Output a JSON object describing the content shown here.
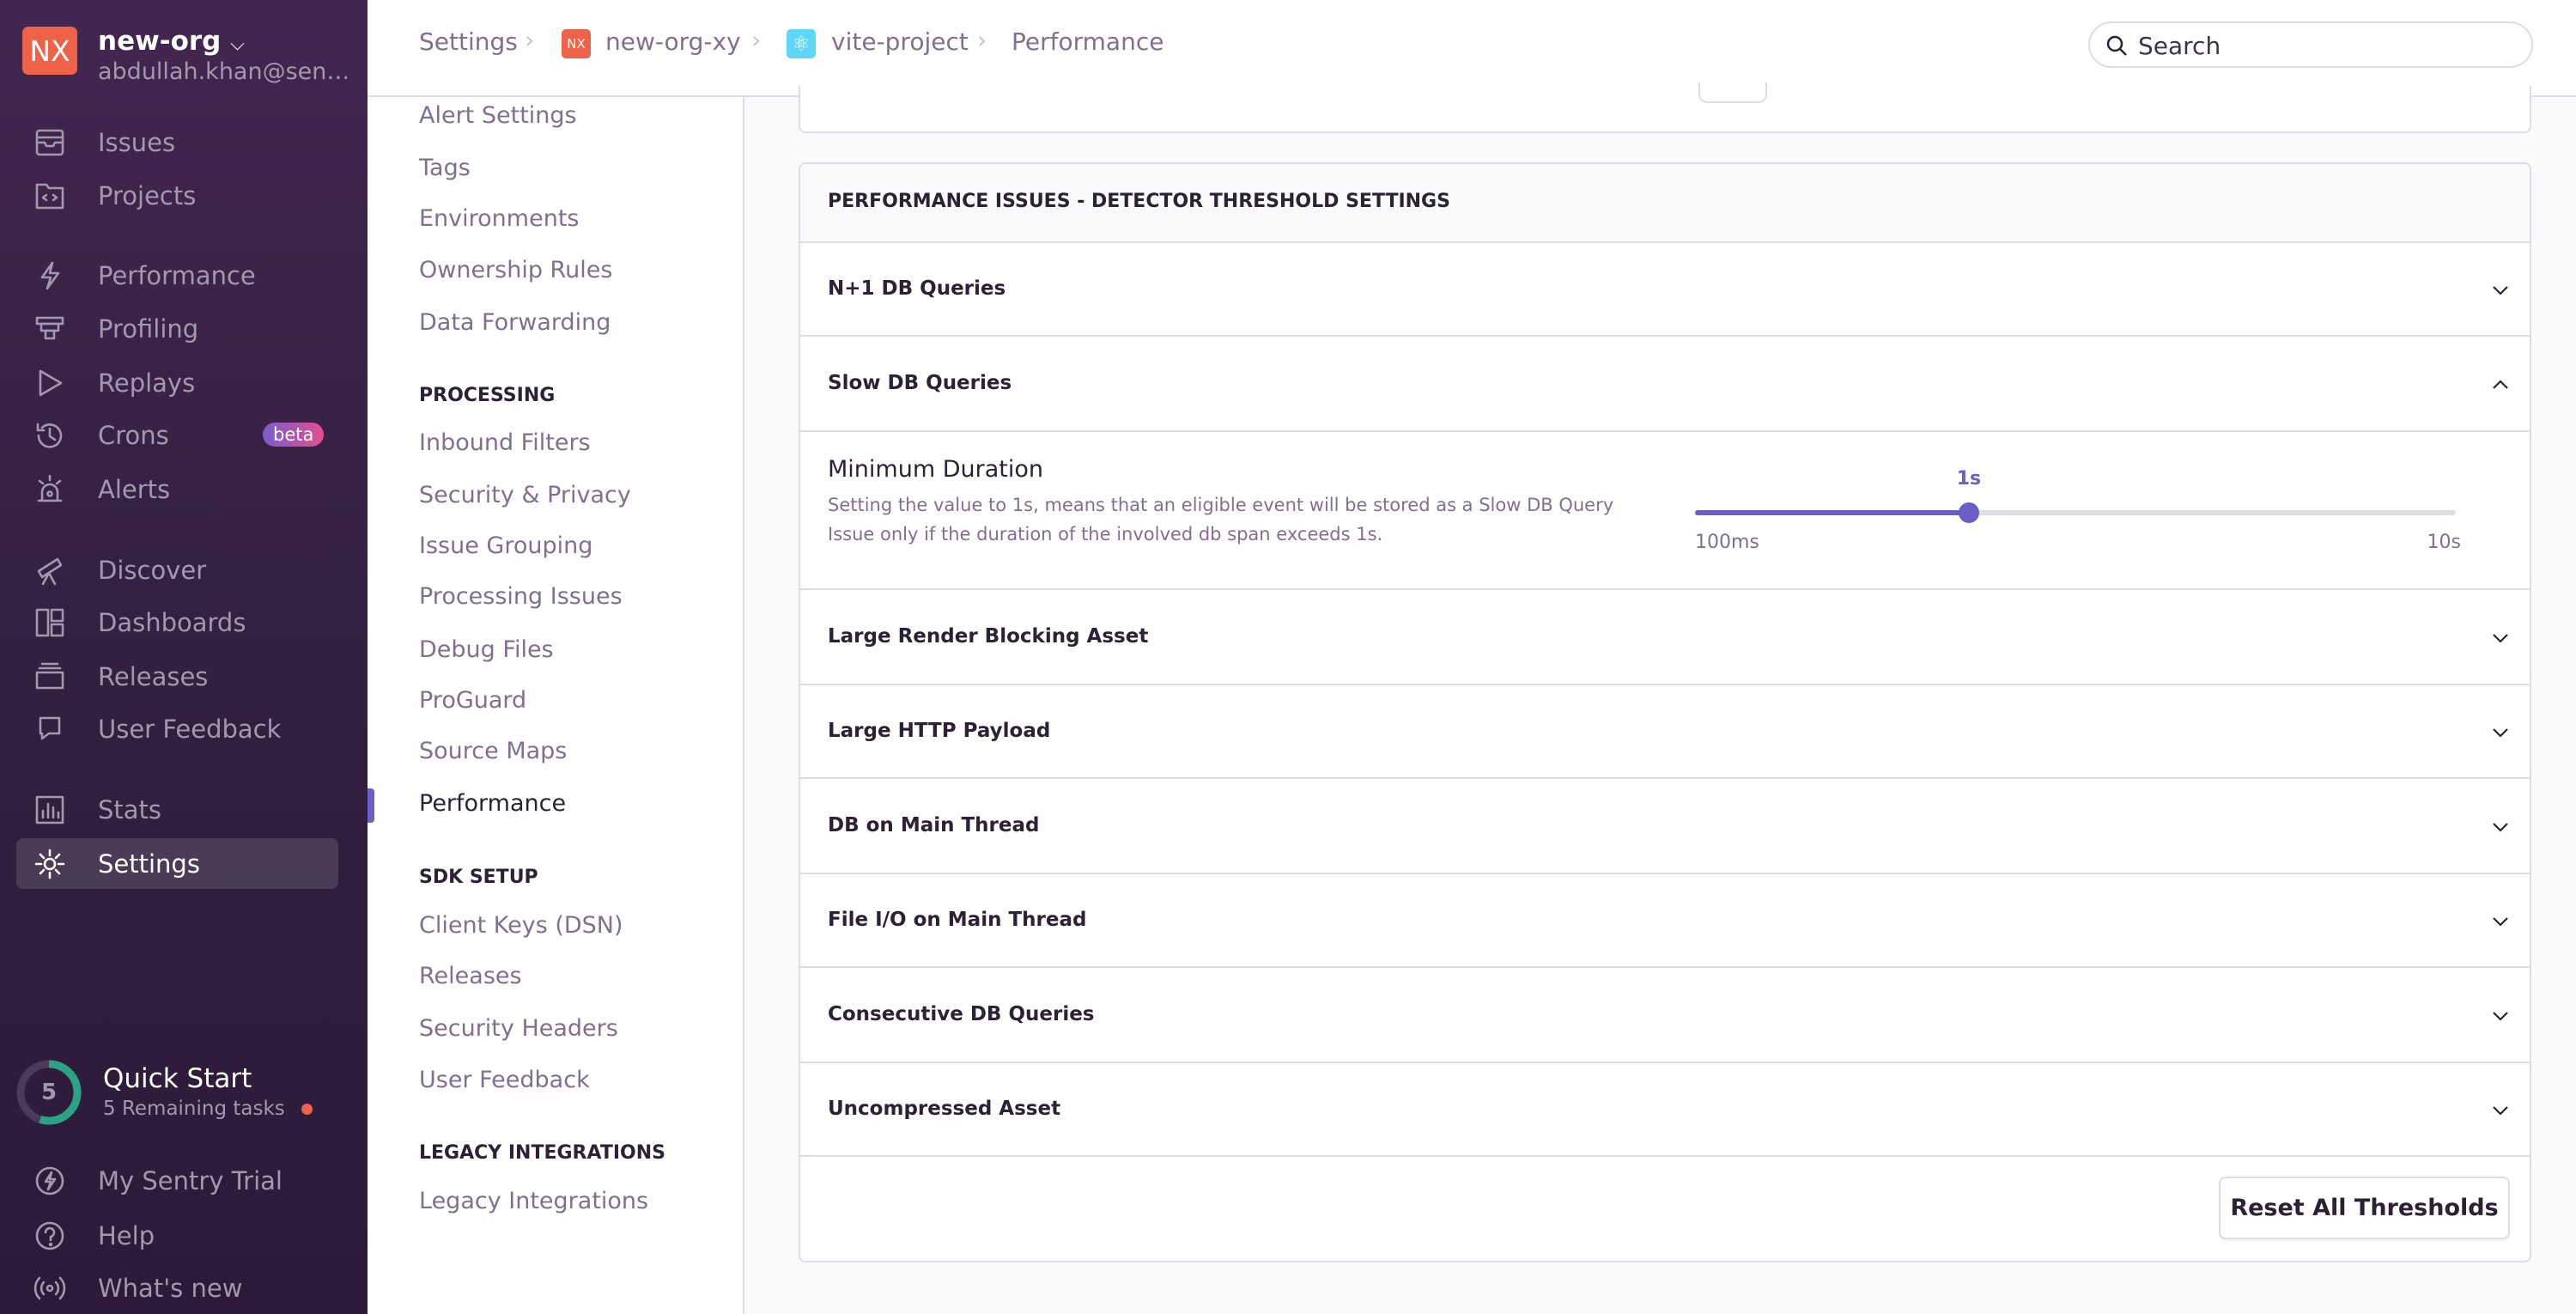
{
  "org": {
    "initials": "NX",
    "name": "new-org",
    "email": "abdullah.khan@sen…"
  },
  "sidebar": {
    "items": [
      {
        "label": "Issues",
        "icon": "inbox-icon"
      },
      {
        "label": "Projects",
        "icon": "folder-code-icon"
      },
      {
        "label": "Performance",
        "icon": "lightning-icon"
      },
      {
        "label": "Profiling",
        "icon": "profiling-icon"
      },
      {
        "label": "Replays",
        "icon": "play-icon"
      },
      {
        "label": "Crons",
        "icon": "history-icon",
        "badge": "beta"
      },
      {
        "label": "Alerts",
        "icon": "siren-icon"
      },
      {
        "label": "Discover",
        "icon": "telescope-icon"
      },
      {
        "label": "Dashboards",
        "icon": "dashboard-icon"
      },
      {
        "label": "Releases",
        "icon": "stack-icon"
      },
      {
        "label": "User Feedback",
        "icon": "megaphone-icon"
      },
      {
        "label": "Stats",
        "icon": "bar-chart-icon"
      },
      {
        "label": "Settings",
        "icon": "gear-icon",
        "active": true
      }
    ],
    "quick_start": {
      "count": "5",
      "title": "Quick Start",
      "subtitle": "5 Remaining tasks",
      "progress": 0.55
    },
    "bottom": [
      {
        "label": "My Sentry Trial",
        "icon": "lightning-circle-icon"
      },
      {
        "label": "Help",
        "icon": "question-icon"
      },
      {
        "label": "What's new",
        "icon": "broadcast-icon"
      }
    ]
  },
  "breadcrumb": {
    "settings": "Settings",
    "org": "new-org-xy",
    "org_initials": "NX",
    "project": "vite-project",
    "page": "Performance"
  },
  "search": {
    "placeholder": "Search"
  },
  "settings_nav": {
    "items_top": [
      "Alert Settings",
      "Tags",
      "Environments",
      "Ownership Rules",
      "Data Forwarding"
    ],
    "processing_heading": "PROCESSING",
    "processing": [
      "Inbound Filters",
      "Security & Privacy",
      "Issue Grouping",
      "Processing Issues",
      "Debug Files",
      "ProGuard",
      "Source Maps",
      "Performance"
    ],
    "sdk_heading": "SDK SETUP",
    "sdk": [
      "Client Keys (DSN)",
      "Releases",
      "Security Headers",
      "User Feedback"
    ],
    "legacy_heading": "LEGACY INTEGRATIONS",
    "legacy": [
      "Legacy Integrations"
    ],
    "active": "Performance"
  },
  "panel": {
    "title": "PERFORMANCE ISSUES - DETECTOR THRESHOLD SETTINGS",
    "rows": [
      "N+1 DB Queries",
      "Slow DB Queries",
      "Large Render Blocking Asset",
      "Large HTTP Payload",
      "DB on Main Thread",
      "File I/O on Main Thread",
      "Consecutive DB Queries",
      "Uncompressed Asset"
    ],
    "expanded": "Slow DB Queries",
    "field": {
      "label": "Minimum Duration",
      "description_1": "Setting the value to 1s, means that an eligible event will be stored as a Slow DB Query",
      "description_2": "Issue only if the duration of the involved db span exceeds 1s.",
      "value": "1s",
      "min": "100ms",
      "max": "10s",
      "fill_fraction": 0.36
    },
    "reset_label": "Reset All Thresholds"
  },
  "colors": {
    "accent": "#6c5fc7",
    "sidebar_bg": "#3a2347",
    "org": "#ee6247",
    "quickstart": "#2ba185"
  }
}
